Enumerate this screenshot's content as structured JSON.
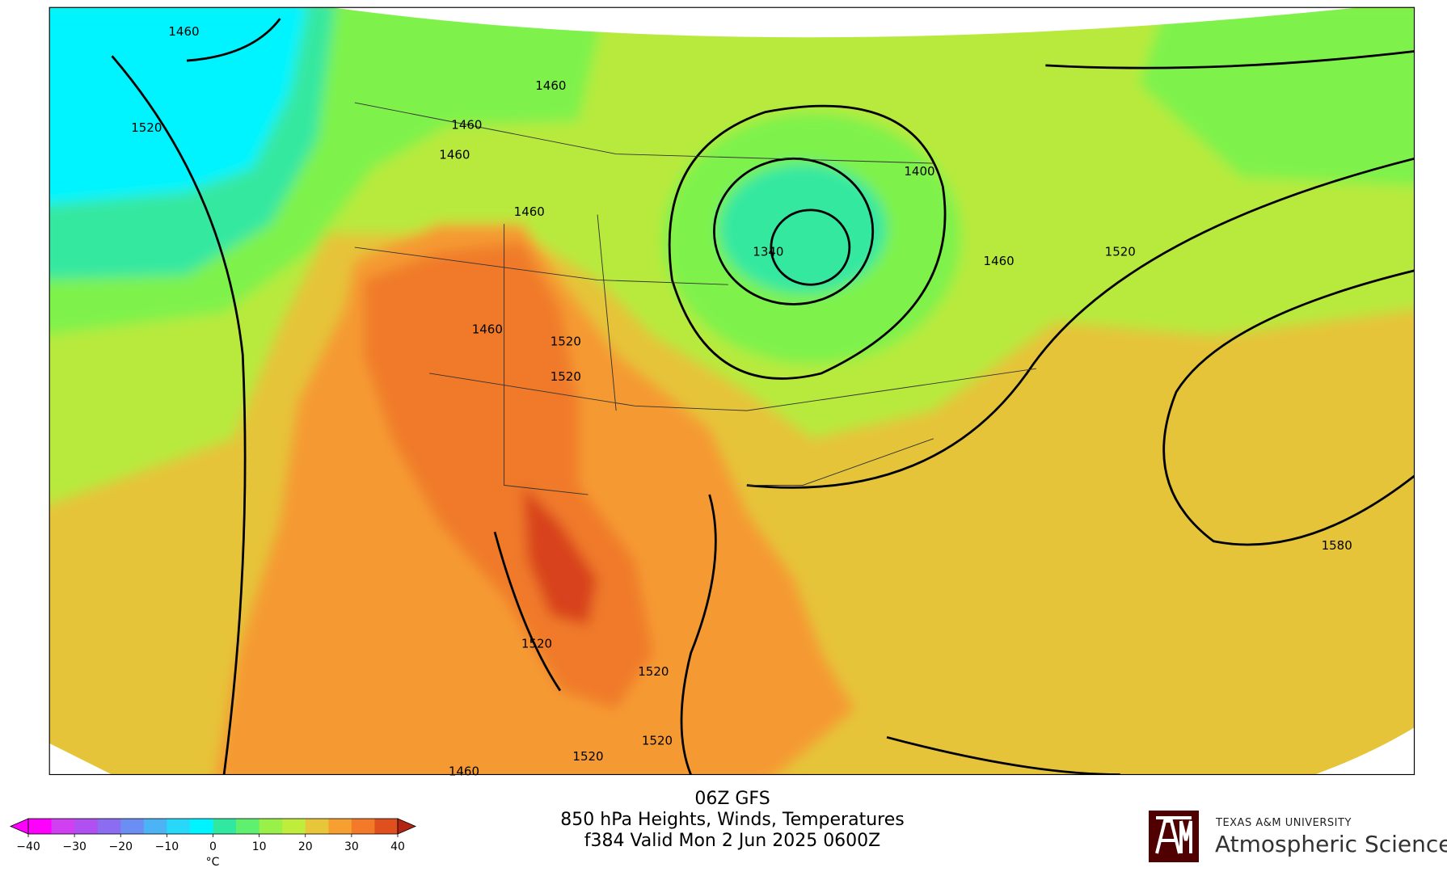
{
  "title_lines": [
    "06Z GFS",
    "850 hPa Heights, Winds, Temperatures",
    "f384 Valid Mon 2 Jun 2025 0600Z"
  ],
  "colorbar": {
    "xlim": [
      -40,
      40
    ],
    "ticks": [
      {
        "value": -40,
        "label": "−40"
      },
      {
        "value": -30,
        "label": "−30"
      },
      {
        "value": -20,
        "label": "−20"
      },
      {
        "value": -10,
        "label": "−10"
      },
      0,
      10,
      20,
      30,
      40
    ],
    "unit": "°C",
    "colors": [
      "#ff00ff",
      "#ff00ff",
      "#d040f0",
      "#b050f0",
      "#8c6cf0",
      "#6a8ef2",
      "#4cb4f4",
      "#28d8f8",
      "#00f4ff",
      "#30e8a0",
      "#60f070",
      "#98f048",
      "#c0ec3c",
      "#e8c63a",
      "#f5a030",
      "#f27a28",
      "#e0501e",
      "#b42412"
    ]
  },
  "contour_labels": [
    1460,
    1520,
    1460,
    1460,
    1460,
    1460,
    1460,
    1520,
    1520,
    1400,
    1340,
    1460,
    1520,
    1580,
    1520,
    1520,
    1520,
    1520,
    1460
  ],
  "logo": {
    "university": "TEXAS A&M UNIVERSITY",
    "department": "Atmospheric Sciences"
  }
}
